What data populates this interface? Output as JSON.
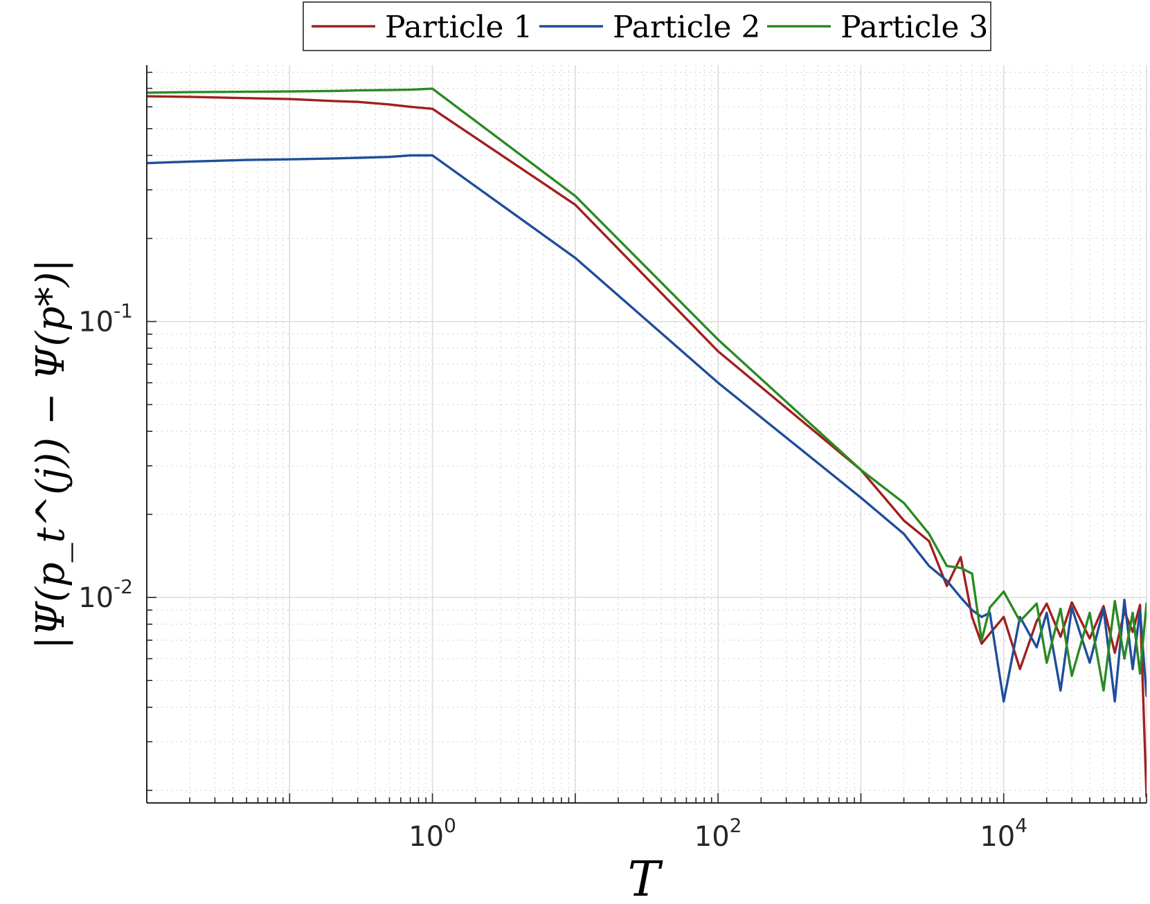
{
  "chart_data": {
    "type": "line",
    "title": "",
    "xlabel": "T",
    "ylabel": "|Ψ(p_t^(j)) − Ψ(p*)|",
    "xscale": "log",
    "yscale": "log",
    "xlim": [
      0.01,
      100000
    ],
    "ylim": [
      0.0018,
      0.85
    ],
    "grid": true,
    "minor_grid": true,
    "legend_position": "top-center",
    "x_ticks": [
      {
        "value": 1,
        "base": "10",
        "exp": "0"
      },
      {
        "value": 100,
        "base": "10",
        "exp": "2"
      },
      {
        "value": 10000,
        "base": "10",
        "exp": "4"
      }
    ],
    "y_ticks": [
      {
        "value": 0.1,
        "base": "10",
        "exp": "-1"
      },
      {
        "value": 0.01,
        "base": "10",
        "exp": "-2"
      }
    ],
    "series": [
      {
        "name": "Particle 1",
        "color": "#a21f1f",
        "x": [
          0.01,
          0.02,
          0.05,
          0.1,
          0.2,
          0.3,
          0.5,
          0.7,
          1,
          10,
          100,
          1000,
          2000,
          3000,
          4000,
          5000,
          6000,
          7000,
          8000,
          10000,
          13000,
          17000,
          20000,
          25000,
          30000,
          40000,
          50000,
          60000,
          70000,
          80000,
          90000,
          100000
        ],
        "y": [
          0.655,
          0.652,
          0.645,
          0.64,
          0.63,
          0.625,
          0.612,
          0.6,
          0.59,
          0.265,
          0.078,
          0.029,
          0.019,
          0.016,
          0.011,
          0.014,
          0.0085,
          0.0068,
          0.0074,
          0.0085,
          0.0055,
          0.0082,
          0.0095,
          0.0072,
          0.0096,
          0.0071,
          0.0093,
          0.0063,
          0.0089,
          0.0075,
          0.0094,
          0.0019
        ]
      },
      {
        "name": "Particle 2",
        "color": "#1f4e9a",
        "x": [
          0.01,
          0.02,
          0.05,
          0.1,
          0.2,
          0.3,
          0.5,
          0.7,
          1,
          10,
          100,
          1000,
          2000,
          3000,
          4000,
          5000,
          6000,
          7000,
          8000,
          10000,
          13000,
          17000,
          20000,
          25000,
          30000,
          40000,
          50000,
          60000,
          70000,
          80000,
          90000,
          100000
        ],
        "y": [
          0.375,
          0.38,
          0.385,
          0.387,
          0.39,
          0.392,
          0.395,
          0.4,
          0.4,
          0.17,
          0.06,
          0.023,
          0.017,
          0.013,
          0.0115,
          0.01,
          0.009,
          0.0085,
          0.0088,
          0.0042,
          0.0085,
          0.0066,
          0.0088,
          0.0046,
          0.0092,
          0.0058,
          0.0091,
          0.0042,
          0.0098,
          0.0055,
          0.009,
          0.0044
        ]
      },
      {
        "name": "Particle 3",
        "color": "#2a8a23",
        "x": [
          0.01,
          0.02,
          0.05,
          0.1,
          0.2,
          0.3,
          0.5,
          0.7,
          1,
          10,
          100,
          1000,
          2000,
          3000,
          4000,
          5000,
          6000,
          7000,
          8000,
          10000,
          13000,
          17000,
          20000,
          25000,
          30000,
          40000,
          50000,
          60000,
          70000,
          80000,
          90000,
          100000
        ],
        "y": [
          0.675,
          0.678,
          0.68,
          0.682,
          0.685,
          0.688,
          0.69,
          0.692,
          0.698,
          0.285,
          0.086,
          0.029,
          0.022,
          0.017,
          0.013,
          0.0128,
          0.0122,
          0.007,
          0.0092,
          0.0105,
          0.0082,
          0.0095,
          0.0058,
          0.0091,
          0.0052,
          0.0088,
          0.0046,
          0.0097,
          0.006,
          0.0088,
          0.0053,
          0.0095
        ]
      }
    ]
  }
}
